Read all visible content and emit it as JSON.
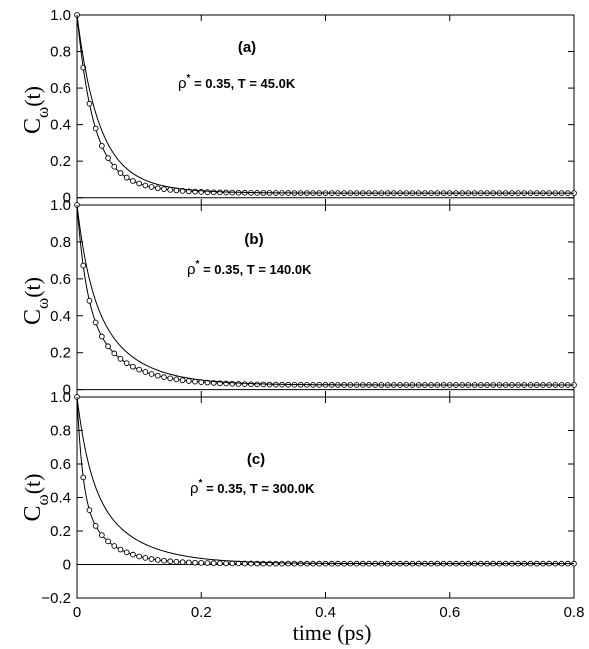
{
  "x_axis": {
    "label": "time (ps)",
    "ticks": [
      "0",
      "0.2",
      "0.4",
      "0.6",
      "0.8"
    ]
  },
  "chart_data": [
    {
      "type": "line",
      "panel": "(a)",
      "annotation": {
        "rho": "ρ",
        "sup": "*",
        "rest": " = 0.35, T = 45.0K"
      },
      "ylabel": {
        "main": "C",
        "sub": "ω",
        "arg": "(t)"
      },
      "yticks": [
        "0",
        "0.2",
        "0.4",
        "0.6",
        "0.8",
        "1.0"
      ],
      "xlim": [
        0,
        0.8
      ],
      "ylim": [
        -0.04,
        1.0
      ],
      "series": [
        {
          "style": "line-circles",
          "decay": [
            0.74,
            0.024,
            0.26,
            0.055
          ],
          "plateau": 0.025
        },
        {
          "style": "line",
          "decay": [
            0.65,
            0.03,
            0.35,
            0.06
          ],
          "plateau": 0.025
        }
      ]
    },
    {
      "type": "line",
      "panel": "(b)",
      "annotation": {
        "rho": "ρ",
        "sup": "*",
        "rest": " = 0.35, T = 140.0K"
      },
      "ylabel": {
        "main": "C",
        "sub": "ω",
        "arg": "(t)"
      },
      "yticks": [
        "0",
        "0.2",
        "0.4",
        "0.6",
        "0.8",
        "1.0"
      ],
      "xlim": [
        0,
        0.8
      ],
      "ylim": [
        -0.04,
        1.0
      ],
      "series": [
        {
          "style": "line-circles",
          "decay": [
            0.55,
            0.015,
            0.45,
            0.06
          ],
          "plateau": 0.025
        },
        {
          "style": "line",
          "decay": [
            0.4,
            0.02,
            0.6,
            0.065
          ],
          "plateau": 0.025
        }
      ]
    },
    {
      "type": "line",
      "panel": "(c)",
      "annotation": {
        "rho": "ρ",
        "sup": "*",
        "rest": " = 0.35, T = 300.0K"
      },
      "ylabel": {
        "main": "C",
        "sub": "ω",
        "arg": "(t)"
      },
      "yticks": [
        "−0.2",
        "0",
        "0.2",
        "0.4",
        "0.6",
        "0.8",
        "1.0"
      ],
      "xlim": [
        0,
        0.8
      ],
      "ylim": [
        -0.2,
        1.0
      ],
      "series": [
        {
          "style": "line-circles",
          "decay": [
            0.6,
            0.009,
            0.4,
            0.045
          ],
          "plateau": 0.005
        },
        {
          "style": "line",
          "decay": [
            0.45,
            0.02,
            0.55,
            0.07
          ],
          "plateau": 0.005
        }
      ]
    }
  ]
}
